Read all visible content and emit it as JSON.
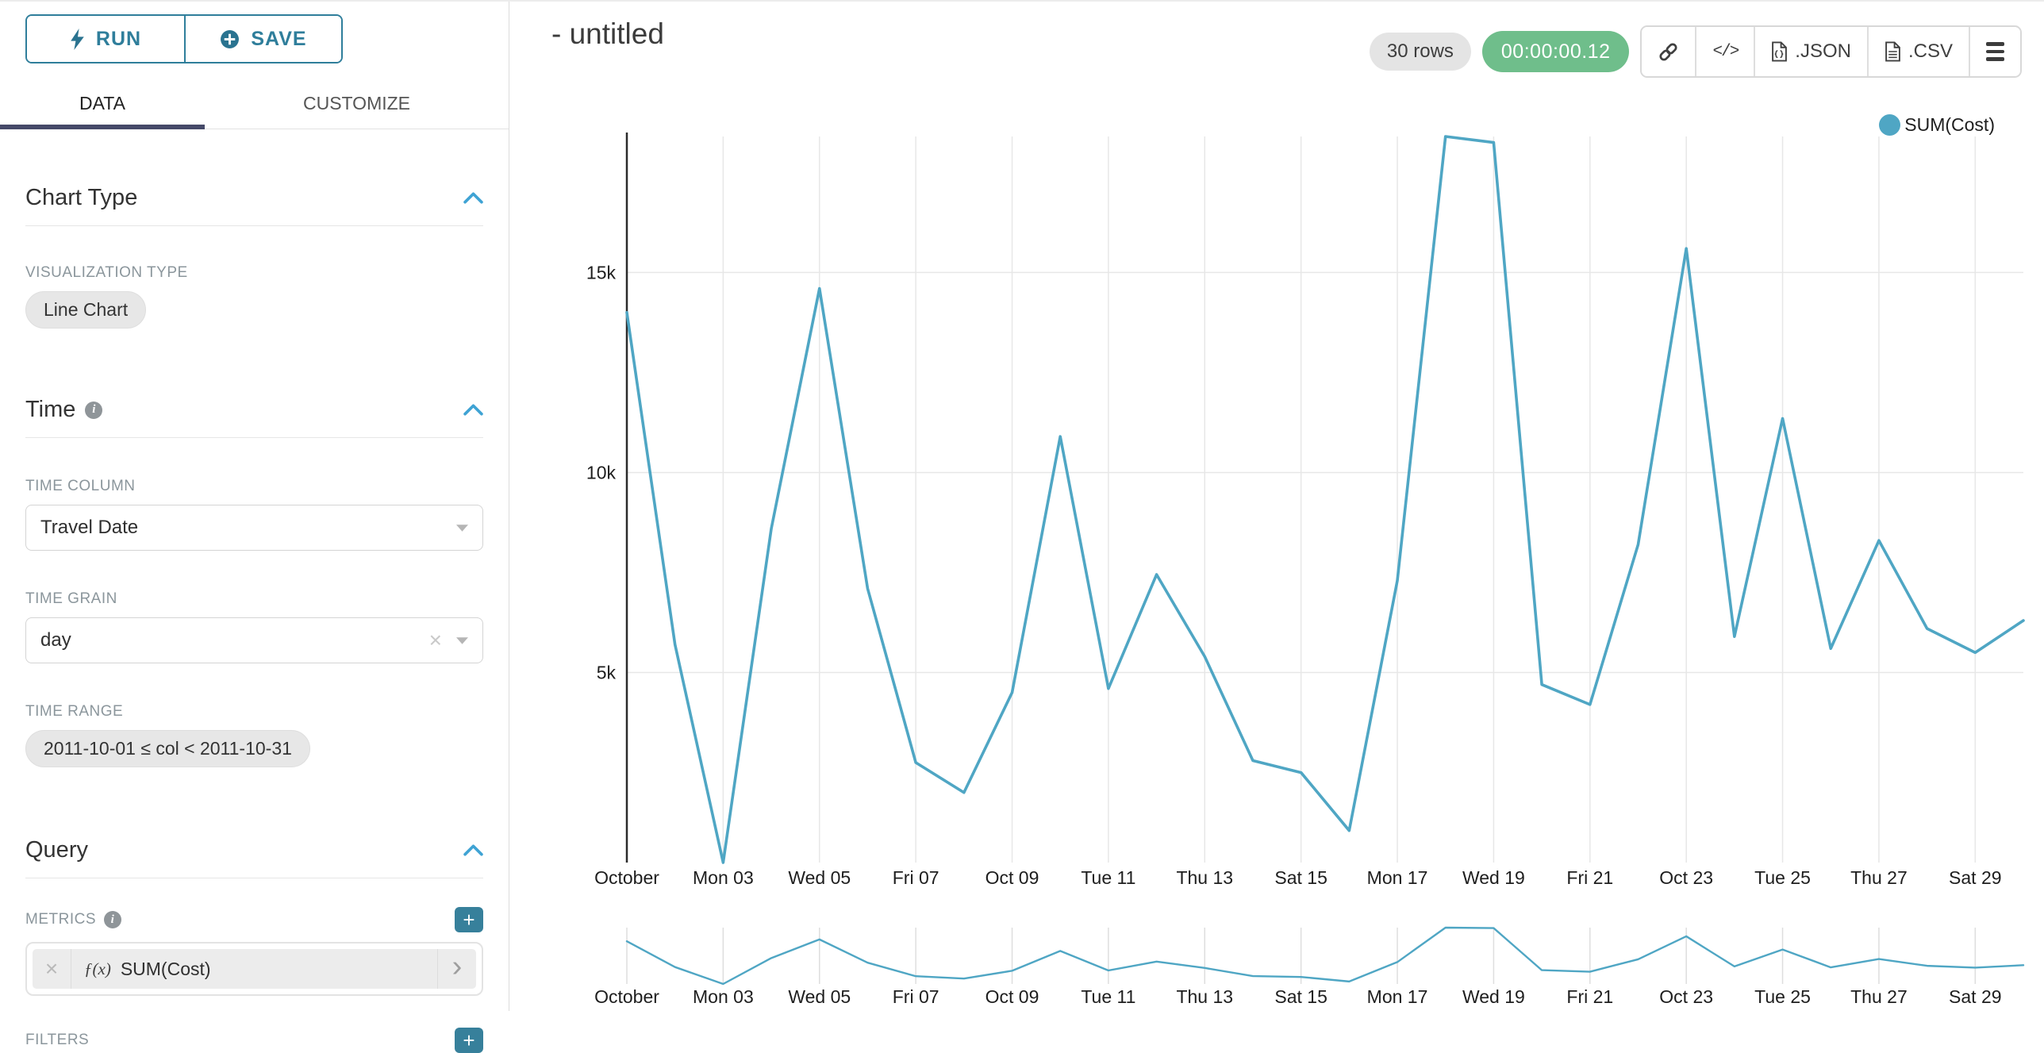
{
  "colors": {
    "teal": "#2f7e9b",
    "plus_button": "#37809b",
    "line": "#4fa6c4",
    "green": "#6fbe8b",
    "tab_underline": "#454968"
  },
  "icons": {
    "run": "bolt-icon",
    "save": "plus-circle-icon",
    "section_collapse": "chevron-up-icon",
    "help": "info-icon",
    "select_open": "caret-down-icon",
    "clear": "x-icon",
    "metric_expression": "fx-icon",
    "share": "link-icon",
    "embed": "code-icon",
    "export": "file-icon",
    "more": "menu-icon"
  },
  "sidebar": {
    "run_label": "RUN",
    "save_label": "SAVE",
    "tabs": {
      "data": "DATA",
      "customize": "CUSTOMIZE"
    },
    "chart_type": {
      "title": "Chart Type",
      "viz_label": "VISUALIZATION TYPE",
      "viz_value": "Line Chart"
    },
    "time": {
      "title": "Time",
      "column_label": "TIME COLUMN",
      "column_value": "Travel Date",
      "grain_label": "TIME GRAIN",
      "grain_value": "day",
      "range_label": "TIME RANGE",
      "range_value": "2011-10-01 ≤ col < 2011-10-31"
    },
    "query": {
      "title": "Query",
      "metrics_label": "METRICS",
      "metric_fn": "ƒ(x)",
      "metric_value": "SUM(Cost)",
      "metric_clear": "×",
      "metric_arrow": "›",
      "filters_label": "FILTERS",
      "plus_glyph": "+"
    }
  },
  "header": {
    "title": "- untitled",
    "rows_badge": "30 rows",
    "timer_badge": "00:00:00.12",
    "code_glyph": "</>",
    "export_json_label": ".JSON",
    "export_csv_label": ".CSV"
  },
  "legend": {
    "label": "SUM(Cost)"
  },
  "chart_data": {
    "type": "line",
    "title": "- untitled",
    "x_unit": "day of October 2011 (Travel Date, grain: day)",
    "series": [
      {
        "name": "SUM(Cost)",
        "x_days": [
          1,
          2,
          3,
          4,
          5,
          6,
          7,
          8,
          9,
          10,
          11,
          12,
          13,
          14,
          15,
          16,
          17,
          18,
          19,
          20,
          21,
          22,
          23,
          24,
          25,
          26,
          27,
          28,
          29,
          30
        ],
        "values": [
          14000,
          5700,
          250,
          8600,
          14600,
          7100,
          2750,
          2000,
          4500,
          10900,
          4600,
          7450,
          5400,
          2800,
          2500,
          1050,
          7300,
          18400,
          18250,
          4700,
          4200,
          8200,
          15600,
          5900,
          11350,
          5600,
          8300,
          6100,
          5500,
          6300
        ]
      }
    ],
    "x_tick_days": [
      1,
      3,
      5,
      7,
      9,
      11,
      13,
      15,
      17,
      19,
      21,
      23,
      25,
      27,
      29
    ],
    "x_tick_labels": [
      "October",
      "Mon 03",
      "Wed 05",
      "Fri 07",
      "Oct 09",
      "Tue 11",
      "Thu 13",
      "Sat 15",
      "Mon 17",
      "Wed 19",
      "Fri 21",
      "Oct 23",
      "Tue 25",
      "Thu 27",
      "Sat 29"
    ],
    "y_ticks": [
      {
        "value": 5000,
        "label": "5k"
      },
      {
        "value": 10000,
        "label": "10k"
      },
      {
        "value": 15000,
        "label": "15k"
      }
    ],
    "y_domain": [
      250,
      18400
    ],
    "x_domain_days": [
      1,
      30
    ],
    "grid": true,
    "legend_position": "top-right",
    "has_focus_context_chart": true
  }
}
